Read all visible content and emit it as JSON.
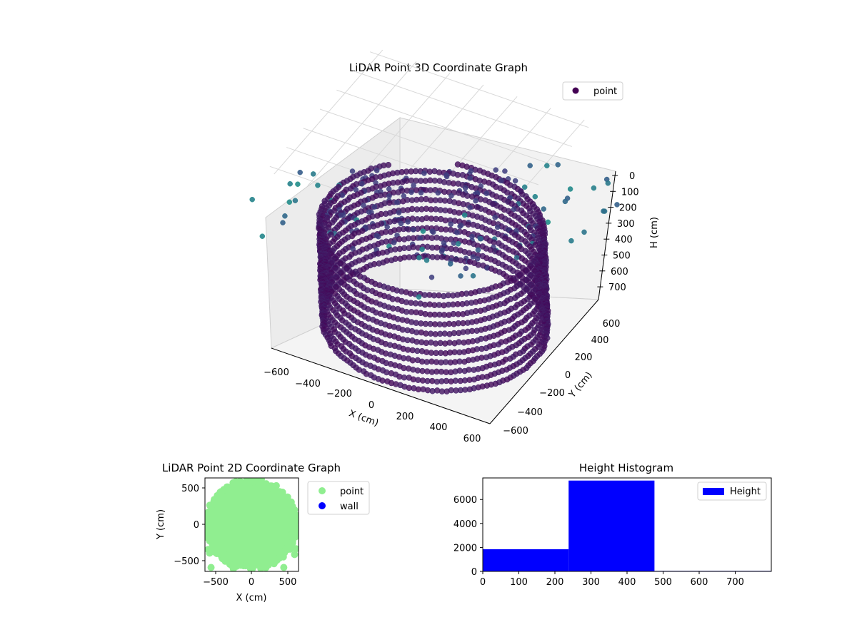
{
  "chart_data": [
    {
      "type": "scatter3d",
      "title": "LiDAR Point 3D Coordinate Graph",
      "xlabel": "X (cm)",
      "ylabel": "Y (cm)",
      "zlabel": "H (cm)",
      "xticks": [
        "−600",
        "−400",
        "−200",
        "0",
        "200",
        "400",
        "600"
      ],
      "yticks": [
        "−600",
        "−400",
        "−200",
        "0",
        "200",
        "400",
        "600"
      ],
      "zticks": [
        "0",
        "100",
        "200",
        "300",
        "400",
        "500",
        "600",
        "700"
      ],
      "xlim": [
        -650,
        650
      ],
      "ylim": [
        -650,
        650
      ],
      "zlim": [
        0,
        780
      ],
      "z_inverted": true,
      "legend": {
        "entries": [
          "point"
        ],
        "placement": "top-right"
      },
      "colormap": "viridis",
      "grid": true,
      "description": "cylindrical wall of points, radius ~600 cm, heights ~0-450 cm, plus scattered outliers"
    },
    {
      "type": "scatter",
      "title": "LiDAR Point 2D Coordinate Graph",
      "xlabel": "X (cm)",
      "ylabel": "Y (cm)",
      "xticks": [
        "−500",
        "0",
        "500"
      ],
      "yticks": [
        "500",
        "0",
        "−500"
      ],
      "xlim": [
        -650,
        650
      ],
      "ylim": [
        -650,
        650
      ],
      "series": [
        {
          "name": "point",
          "color": "#90ee90"
        },
        {
          "name": "wall",
          "color": "#0000ff"
        }
      ],
      "legend": {
        "placement": "outside-right"
      },
      "grid": false
    },
    {
      "type": "histogram",
      "title": "Height Histogram",
      "xticks": [
        "0",
        "100",
        "200",
        "300",
        "400",
        "500",
        "600",
        "700"
      ],
      "yticks": [
        "0",
        "2000",
        "4000",
        "6000"
      ],
      "xlim": [
        0,
        800
      ],
      "ylim": [
        0,
        7800
      ],
      "bins": [
        {
          "x0": 0,
          "x1": 238,
          "count": 1850
        },
        {
          "x0": 238,
          "x1": 476,
          "count": 7580
        },
        {
          "x0": 476,
          "x1": 714,
          "count": 40
        },
        {
          "x0": 714,
          "x1": 800,
          "count": 40
        }
      ],
      "series": [
        {
          "name": "Height",
          "color": "#0000ff"
        }
      ],
      "legend": {
        "placement": "top-right"
      },
      "grid": false
    }
  ]
}
